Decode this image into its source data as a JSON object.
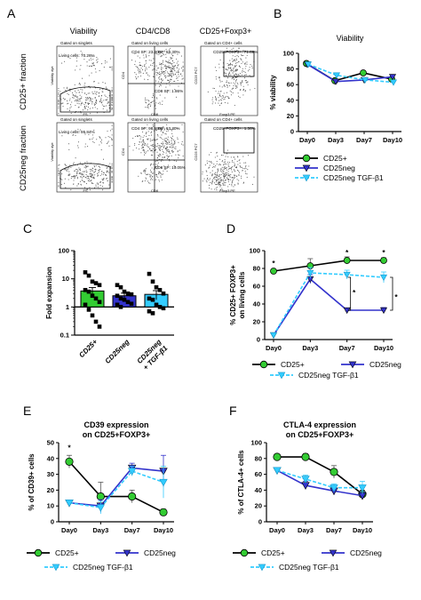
{
  "panel_labels": {
    "A": "A",
    "B": "B",
    "C": "C",
    "D": "D",
    "E": "E",
    "F": "F"
  },
  "flow": {
    "columns": [
      "Viability",
      "CD4/CD8",
      "CD25+Foxp3+"
    ],
    "rows": [
      "CD25+ fraction",
      "CD25neg fraction"
    ],
    "gated_singlets": "Gated on singlets",
    "gated_living": "Gated on living cells",
    "gated_cd4": "Gated on CD4+ cells",
    "living_cells_pos": "Living cells: 70.26%",
    "living_cells_neg": "Living cells: 95.84%",
    "cd4sp_pos": "CD4 SP: 23.80%",
    "dp_pos": "DP: 58.30%",
    "cd8sp_pos": "CD8 SP: 1.86%",
    "cd4sp_neg": "CD4 SP: 98.99%",
    "dp_neg": "DP: 63.30%",
    "cd8sp_neg": "CD8 SP: 10.05%",
    "treg_pos": "CD25+FOXP3+: 71.69%",
    "treg_neg": "CD25+FOXP3+: 1.36%",
    "ax_fs": "FS",
    "ax_viab": "Viability dye",
    "ax_cd8": "CD8",
    "ax_cd4": "CD4",
    "ax_cd25": "CD25 PC7",
    "ax_foxp3": "Foxp3 PE"
  },
  "legend_series": [
    "CD25+",
    "CD25neg",
    "CD25neg TGF-β1"
  ],
  "colors": {
    "cd25pos": "#000000",
    "cd25pos_marker": "#33cc33",
    "cd25neg": "#3333cc",
    "tgf": "#33ccff"
  },
  "chart_data": [
    {
      "id": "B",
      "type": "line",
      "title": "Viability",
      "xlabel": "",
      "ylabel": "% viability",
      "categories": [
        "Day0",
        "Day3",
        "Day7",
        "Day10"
      ],
      "ylim": [
        0,
        100
      ],
      "yticks": [
        0,
        20,
        40,
        60,
        80,
        100
      ],
      "series": [
        {
          "name": "CD25+",
          "values": [
            87,
            65,
            75,
            67
          ]
        },
        {
          "name": "CD25neg",
          "values": [
            86,
            64,
            66,
            70
          ]
        },
        {
          "name": "CD25neg TGF-β1",
          "values": [
            86,
            72,
            66,
            63
          ]
        }
      ]
    },
    {
      "id": "C",
      "type": "bar",
      "title": "",
      "xlabel": "",
      "ylabel": "Fold expansion",
      "yscale": "log",
      "categories": [
        "CD25+",
        "CD25neg",
        "CD25neg\n+ TGF-β1"
      ],
      "ylim": [
        0.1,
        100
      ],
      "yticks": [
        "0.1",
        "1",
        "10",
        "100"
      ],
      "values": [
        3.7,
        2.5,
        2.8
      ],
      "errors": [
        1.2,
        0.6,
        1.0
      ],
      "points": [
        [
          17,
          13,
          8,
          7,
          6,
          4,
          3.5,
          2.5,
          2,
          1.5,
          1.2,
          0.8,
          0.5,
          0.3,
          0.2
        ],
        [
          6,
          5,
          3.5,
          3,
          2.8,
          2.5,
          2,
          1.8,
          1.5,
          1.3,
          1.2,
          1
        ],
        [
          15,
          8,
          5,
          4,
          3,
          2,
          1.8,
          1.2,
          1,
          0.9,
          0.7,
          0.6
        ]
      ]
    },
    {
      "id": "D",
      "type": "line",
      "title": "",
      "xlabel": "",
      "ylabel": "% CD25+ FOXP3+\non living cells",
      "categories": [
        "Day0",
        "Day3",
        "Day7",
        "Day10"
      ],
      "ylim": [
        0,
        100
      ],
      "yticks": [
        0,
        20,
        40,
        60,
        80,
        100
      ],
      "series": [
        {
          "name": "CD25+",
          "values": [
            77,
            83,
            89,
            89
          ],
          "errors": [
            2,
            8,
            4,
            3
          ]
        },
        {
          "name": "CD25neg",
          "values": [
            5,
            68,
            33,
            33
          ],
          "errors": [
            0,
            5,
            0,
            3
          ]
        },
        {
          "name": "CD25neg TGF-β1",
          "values": [
            5,
            75,
            73,
            70
          ],
          "errors": [
            0,
            6,
            5,
            6
          ]
        }
      ],
      "annotations": [
        "*",
        "*",
        "*",
        "*",
        "*"
      ]
    },
    {
      "id": "E",
      "type": "line",
      "title": "CD39 expression\non CD25+FOXP3+",
      "xlabel": "",
      "ylabel": "% of CD39+ cells",
      "categories": [
        "Day0",
        "Day3",
        "Day7",
        "Day10"
      ],
      "ylim": [
        0,
        50
      ],
      "yticks": [
        0,
        10,
        20,
        30,
        40,
        50
      ],
      "series": [
        {
          "name": "CD25+",
          "values": [
            38,
            16,
            16,
            6
          ],
          "errors": [
            4,
            9,
            4,
            2
          ]
        },
        {
          "name": "CD25neg",
          "values": [
            12,
            10,
            34,
            32
          ],
          "errors": [
            0,
            4,
            3,
            10
          ]
        },
        {
          "name": "CD25neg TGF-β1",
          "values": [
            12,
            9,
            32,
            25
          ],
          "errors": [
            0,
            4,
            3,
            10
          ]
        }
      ],
      "annotations": [
        "*"
      ]
    },
    {
      "id": "F",
      "type": "line",
      "title": "CTLA-4 expression\non CD25+FOXP3+",
      "xlabel": "",
      "ylabel": "% of CTLA-4+ cells",
      "categories": [
        "Day0",
        "Day3",
        "Day7",
        "Day10"
      ],
      "ylim": [
        0,
        100
      ],
      "yticks": [
        0,
        20,
        40,
        60,
        80,
        100
      ],
      "series": [
        {
          "name": "CD25+",
          "values": [
            82,
            82,
            63,
            35
          ],
          "errors": [
            3,
            4,
            8,
            5
          ]
        },
        {
          "name": "CD25neg",
          "values": [
            65,
            46,
            39,
            33
          ],
          "errors": [
            3,
            5,
            5,
            5
          ]
        },
        {
          "name": "CD25neg TGF-β1",
          "values": [
            65,
            54,
            43,
            43
          ],
          "errors": [
            3,
            5,
            5,
            8
          ]
        }
      ]
    }
  ]
}
